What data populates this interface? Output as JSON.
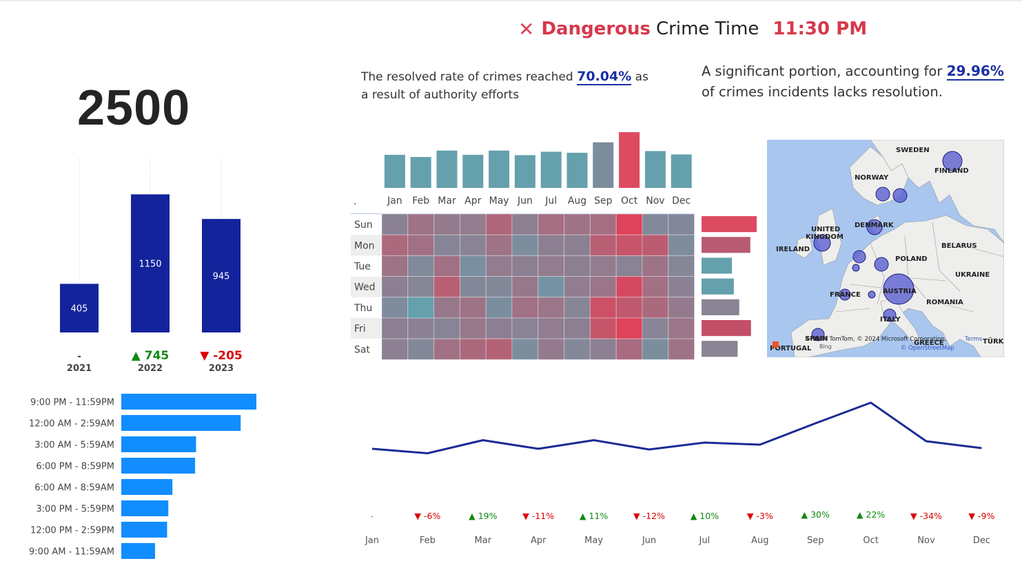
{
  "header": {
    "icon": "close-icon",
    "danger_word": "Dangerous",
    "crime_time_label": "Crime Time",
    "time": "11:30 PM",
    "accent_color": "#d6384c"
  },
  "kpi": {
    "total": "2500"
  },
  "insights": {
    "resolved_prefix": "The resolved rate of crimes reached",
    "resolved_pct": "70.04%",
    "resolved_suffix": "as a result of authority efforts",
    "unresolved_prefix": "A significant portion, accounting for",
    "unresolved_pct": "29.96%",
    "unresolved_suffix": "of crimes incidents lacks resolution."
  },
  "chart_data": [
    {
      "type": "bar",
      "id": "yearly",
      "categories": [
        "2021",
        "2022",
        "2023"
      ],
      "values": [
        405,
        1150,
        945
      ],
      "changes": [
        {
          "label": "-",
          "direction": "none"
        },
        {
          "label": "745",
          "direction": "up"
        },
        {
          "label": "-205",
          "direction": "down"
        }
      ],
      "color": "#13239b",
      "ylim": [
        0,
        1450
      ]
    },
    {
      "type": "bar",
      "id": "time_slots",
      "orientation": "horizontal",
      "categories": [
        "9:00 PM - 11:59PM",
        "12:00 AM - 2:59AM",
        "3:00 AM - 5:59AM",
        "6:00 PM - 8:59PM",
        "6:00 AM - 8:59AM",
        "3:00 PM - 5:59PM",
        "12:00 PM - 2:59PM",
        "9:00 AM - 11:59AM"
      ],
      "values": [
        560,
        495,
        310,
        306,
        212,
        195,
        190,
        140
      ],
      "color": "#118dff",
      "xlim": [
        0,
        560
      ]
    },
    {
      "type": "bar",
      "id": "monthly_columns",
      "categories": [
        "Jan",
        "Feb",
        "Mar",
        "Apr",
        "May",
        "Jun",
        "Jul",
        "Aug",
        "Sep",
        "Oct",
        "Nov",
        "Dec"
      ],
      "values": [
        196,
        183,
        221,
        196,
        221,
        194,
        214,
        208,
        270,
        330,
        218,
        198
      ],
      "colors": [
        "#65a0ad",
        "#65a0ad",
        "#65a0ad",
        "#65a0ad",
        "#65a0ad",
        "#65a0ad",
        "#65a0ad",
        "#65a0ad",
        "#7b8c9c",
        "#dd4b60",
        "#65a0ad",
        "#65a0ad"
      ],
      "corner_label": ".",
      "ylim": [
        0,
        330
      ]
    },
    {
      "type": "heatmap",
      "id": "day_month",
      "x": [
        "Jan",
        "Feb",
        "Mar",
        "Apr",
        "May",
        "Jun",
        "Jul",
        "Aug",
        "Sep",
        "Oct",
        "Nov",
        "Dec"
      ],
      "y": [
        "Sun",
        "Mon",
        "Tue",
        "Wed",
        "Thu",
        "Fri",
        "Sat"
      ],
      "z": [
        [
          0.5,
          0.62,
          0.56,
          0.55,
          0.72,
          0.52,
          0.66,
          0.62,
          0.66,
          1.0,
          0.38,
          0.42
        ],
        [
          0.7,
          0.64,
          0.45,
          0.48,
          0.62,
          0.32,
          0.52,
          0.52,
          0.78,
          0.86,
          0.8,
          0.34
        ],
        [
          0.62,
          0.38,
          0.64,
          0.28,
          0.55,
          0.52,
          0.55,
          0.52,
          0.55,
          0.48,
          0.62,
          0.44
        ],
        [
          0.52,
          0.44,
          0.78,
          0.4,
          0.4,
          0.58,
          0.22,
          0.54,
          0.6,
          0.95,
          0.65,
          0.5
        ],
        [
          0.34,
          0.0,
          0.58,
          0.62,
          0.3,
          0.64,
          0.6,
          0.44,
          0.9,
          0.82,
          0.7,
          0.56
        ],
        [
          0.52,
          0.5,
          0.46,
          0.58,
          0.52,
          0.48,
          0.54,
          0.52,
          0.86,
          1.0,
          0.46,
          0.6
        ],
        [
          0.52,
          0.4,
          0.64,
          0.7,
          0.75,
          0.3,
          0.56,
          0.4,
          0.52,
          0.68,
          0.3,
          0.62
        ]
      ],
      "row_totals": [
        1.0,
        0.8,
        0.22,
        0.28,
        0.45,
        0.82,
        0.4
      ],
      "row_total_colors": [
        "#dd4b60",
        "#b85a72",
        "#65a0ad",
        "#65a0ad",
        "#8a8495",
        "#c24f67",
        "#8a8495"
      ]
    },
    {
      "type": "line",
      "id": "monthly_trend",
      "x": [
        "Jan",
        "Feb",
        "Mar",
        "Apr",
        "May",
        "Jun",
        "Jul",
        "Aug",
        "Sep",
        "Oct",
        "Nov",
        "Dec"
      ],
      "values": [
        196,
        183,
        221,
        196,
        221,
        194,
        214,
        208,
        270,
        330,
        218,
        198
      ],
      "changes": [
        "-",
        "-6%",
        "19%",
        "-11%",
        "11%",
        "-12%",
        "10%",
        "-3%",
        "30%",
        "22%",
        "-34%",
        "-9%"
      ],
      "color": "#1b2a96",
      "ylim": [
        60,
        340
      ]
    }
  ],
  "map": {
    "labels": [
      "SWEDEN",
      "NORWAY",
      "FINLAND",
      "UNITED KINGDOM",
      "DENMARK",
      "IRELAND",
      "BELARUS",
      "POLAND",
      "UKRAINE",
      "FRANCE",
      "AUSTRIA",
      "ROMANIA",
      "ITALY",
      "SPAIN",
      "GREECE",
      "TÜRKIYE",
      "PORTUGAL"
    ],
    "attribution": "© 2024 TomTom, © 2024 Microsoft Corporation,",
    "terms": "Terms",
    "osm": "© OpenStreetMap",
    "bing": "Bing",
    "land_color": "#eeeeec",
    "water_color": "#a8c6ee",
    "bubble_color": "#5a5fd0"
  },
  "colors": {
    "positive": "#108a10",
    "negative": "#dd0000"
  }
}
